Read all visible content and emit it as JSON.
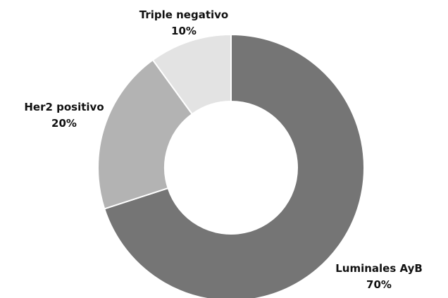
{
  "chart_data": {
    "type": "pie",
    "variant": "donut",
    "slices": [
      {
        "name": "Luminales AyB",
        "value": 70,
        "label": "70%",
        "color": "#757575"
      },
      {
        "name": "Her2 positivo",
        "value": 20,
        "label": "20%",
        "color": "#b3b3b3"
      },
      {
        "name": "Triple negativo",
        "value": 10,
        "label": "10%",
        "color": "#e3e3e3"
      }
    ],
    "start_angle": "12 o'clock",
    "direction": "clockwise",
    "legend": "none"
  }
}
